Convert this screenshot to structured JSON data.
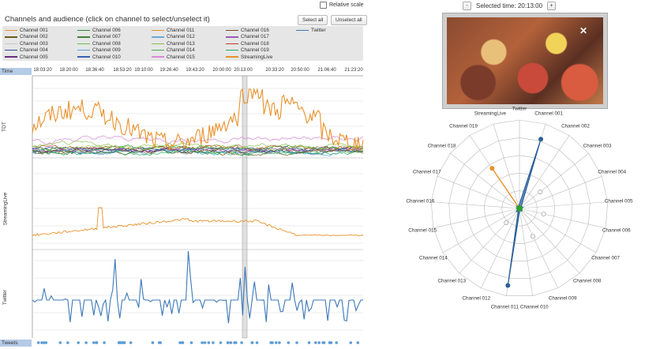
{
  "header": {
    "panel_title": "Channels and audience (click on channel to select/unselect it)",
    "relative_scale_label": "Relative scale",
    "relative_scale_checked": false,
    "select_all": "Select all",
    "unselect_all": "Unselect all"
  },
  "legend": [
    {
      "name": "Channel 001",
      "color": "#e8912b"
    },
    {
      "name": "Channel 002",
      "color": "#6b5a1a"
    },
    {
      "name": "Channel 003",
      "color": "#c8c8c8"
    },
    {
      "name": "Channel 004",
      "color": "#2a4d9e"
    },
    {
      "name": "Channel 005",
      "color": "#6a2b82"
    },
    {
      "name": "Channel 006",
      "color": "#2e8b2e"
    },
    {
      "name": "Channel 007",
      "color": "#3f7f3a"
    },
    {
      "name": "Channel 008",
      "color": "#6bbf4a"
    },
    {
      "name": "Channel 009",
      "color": "#5ba3e0"
    },
    {
      "name": "Channel 010",
      "color": "#3a5fb0"
    },
    {
      "name": "Channel 011",
      "color": "#e8912b"
    },
    {
      "name": "Channel 012",
      "color": "#6aa9d8"
    },
    {
      "name": "Channel 013",
      "color": "#8bc34a"
    },
    {
      "name": "Channel 014",
      "color": "#4caf50"
    },
    {
      "name": "Channel 015",
      "color": "#d98ad9"
    },
    {
      "name": "Channel 016",
      "color": "#7a4a2a"
    },
    {
      "name": "Channel 017",
      "color": "#9b59b6"
    },
    {
      "name": "Channel 018",
      "color": "#c0392b"
    },
    {
      "name": "Channel 019",
      "color": "#27ae60"
    },
    {
      "name": "StreamingLive",
      "color": "#e8912b"
    },
    {
      "name": "Twitter",
      "color": "#3c78b8"
    }
  ],
  "timeline": {
    "time_label": "Time",
    "tweets_label": "Tweets",
    "ticks": [
      "18:03:20",
      "18:20:00",
      "18:36:40",
      "18:53:20",
      "19:10:00",
      "19:26:40",
      "19:43:20",
      "20:00:00",
      "20:13:00",
      "20:33:20",
      "20:50:00",
      "21:06:40",
      "21:23:20"
    ],
    "rows": [
      "TDT",
      "StreamingLive",
      "Twitter"
    ]
  },
  "player": {
    "minus_label": "-",
    "plus_label": "+",
    "selected_time_label": "Selected time: 20:13:00"
  },
  "colors": {
    "twitter": "#3c78b8",
    "orange": "#e8912b",
    "green": "#2e9e2e",
    "grid": "#bbb"
  },
  "polar": {
    "labels": [
      "Twitter",
      "Channel 001",
      "Channel 002",
      "Channel 003",
      "Channel 004",
      "Channel 005",
      "Channel 006",
      "Channel 007",
      "Channel 008",
      "Channel 009",
      "Channel 010",
      "Channel 011",
      "Channel 012",
      "Channel 013",
      "Channel 014",
      "Channel 015",
      "Channel 016",
      "Channel 017",
      "Channel 018",
      "Channel 019",
      "StreamingLive"
    ]
  }
}
